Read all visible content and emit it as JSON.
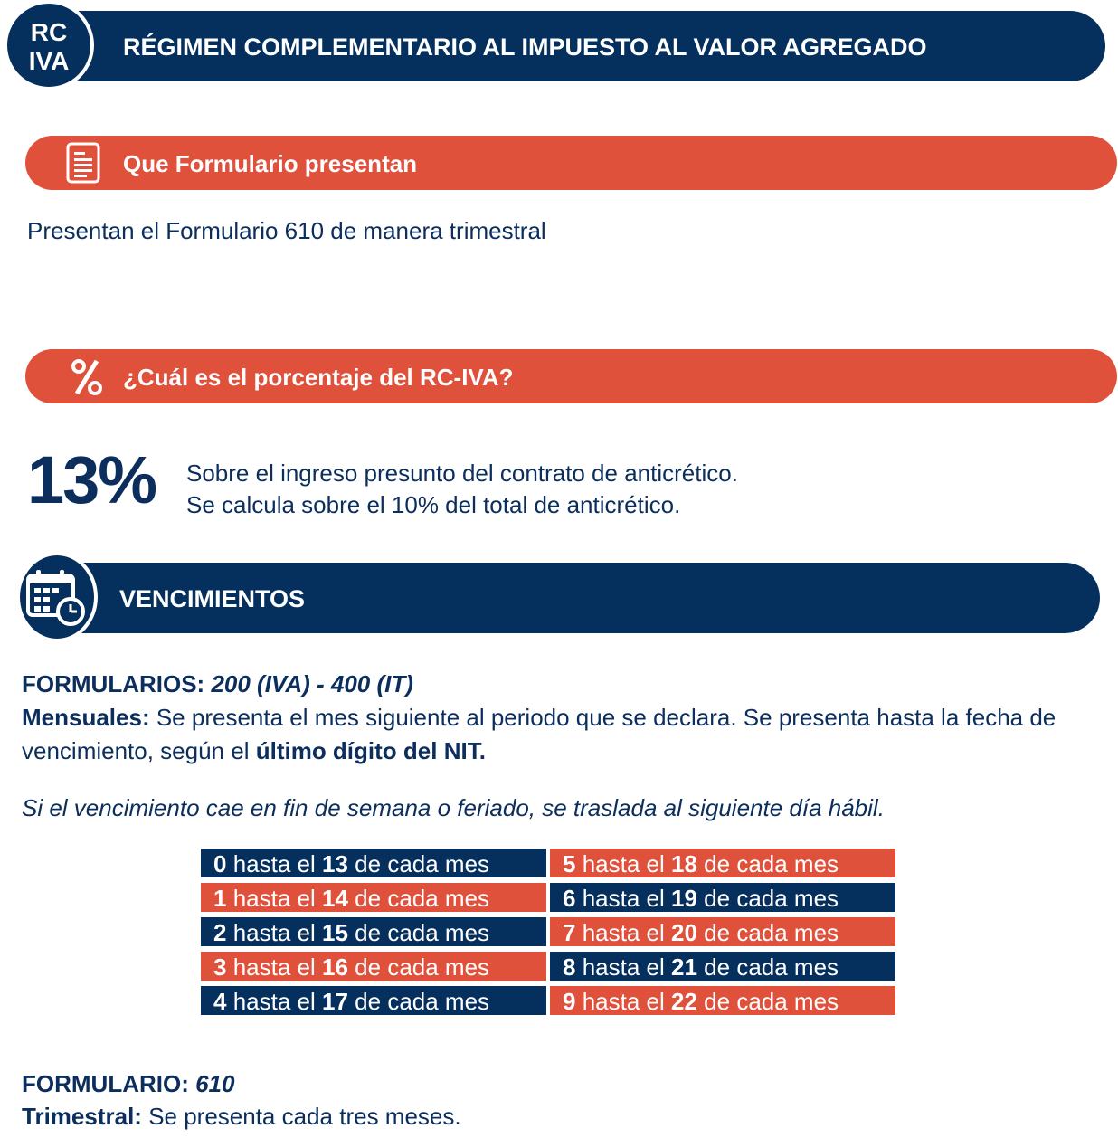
{
  "header": {
    "badge_line1": "RC",
    "badge_line2": "IVA",
    "title": "RÉGIMEN COMPLEMENTARIO AL IMPUESTO AL VALOR AGREGADO"
  },
  "section_form": {
    "icon": "document-icon",
    "title": "Que Formulario presentan",
    "text": "Presentan el Formulario 610 de manera trimestral"
  },
  "section_pct": {
    "icon": "percent-icon",
    "title": "¿Cuál es el porcentaje del RC-IVA?",
    "value": "13%",
    "line1": "Sobre el ingreso presunto del contrato de anticrético.",
    "line2": "Se calcula sobre el 10% del total de anticrético."
  },
  "section_venc": {
    "icon": "calendar-clock-icon",
    "title": "VENCIMIENTOS",
    "formularios_label": "FORMULARIOS:",
    "formularios_value": "200 (IVA) - 400 (IT)",
    "mensuales_label": "Mensuales:",
    "mensuales_text": "Se presenta el mes siguiente al periodo que se declara. Se presenta hasta la fecha de vencimiento, según el",
    "mensuales_bold": "último dígito del NIT.",
    "note": "Si el vencimiento cae en fin de semana o feriado, se traslada al siguiente día hábil.",
    "schedule": [
      {
        "digit": "0",
        "day": "13",
        "color": "navy"
      },
      {
        "digit": "5",
        "day": "18",
        "color": "red"
      },
      {
        "digit": "1",
        "day": "14",
        "color": "red"
      },
      {
        "digit": "6",
        "day": "19",
        "color": "navy"
      },
      {
        "digit": "2",
        "day": "15",
        "color": "navy"
      },
      {
        "digit": "7",
        "day": "20",
        "color": "red"
      },
      {
        "digit": "3",
        "day": "16",
        "color": "red"
      },
      {
        "digit": "8",
        "day": "21",
        "color": "navy"
      },
      {
        "digit": "4",
        "day": "17",
        "color": "navy"
      },
      {
        "digit": "9",
        "day": "22",
        "color": "red"
      }
    ],
    "sched_hasta": "hasta el",
    "sched_suffix": "de cada mes",
    "formulario_label": "FORMULARIO:",
    "formulario_value": "610",
    "trimestral_label": "Trimestral:",
    "trimestral_text": "Se presenta cada tres meses."
  },
  "colors": {
    "navy": "#05305e",
    "red": "#e0513c"
  }
}
